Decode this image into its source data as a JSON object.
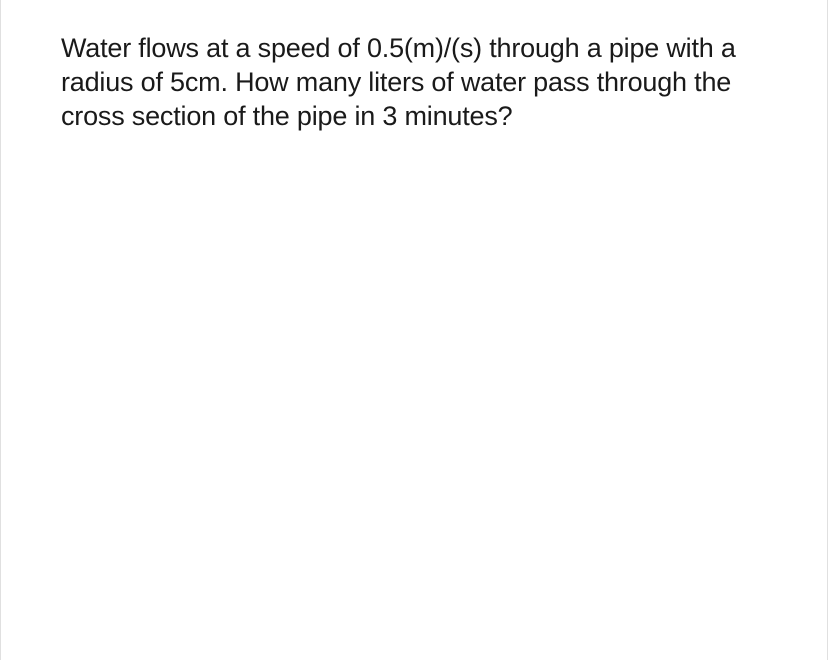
{
  "question": {
    "text": "Water flows at a speed of 0.5(m)/(s) through a pipe with a radius of 5cm. How many liters of water pass through the cross section of the pipe in 3 minutes?",
    "font_size": 27,
    "text_color": "#1a1a1a",
    "background_color": "#ffffff",
    "border_color": "#e0e0e0"
  }
}
